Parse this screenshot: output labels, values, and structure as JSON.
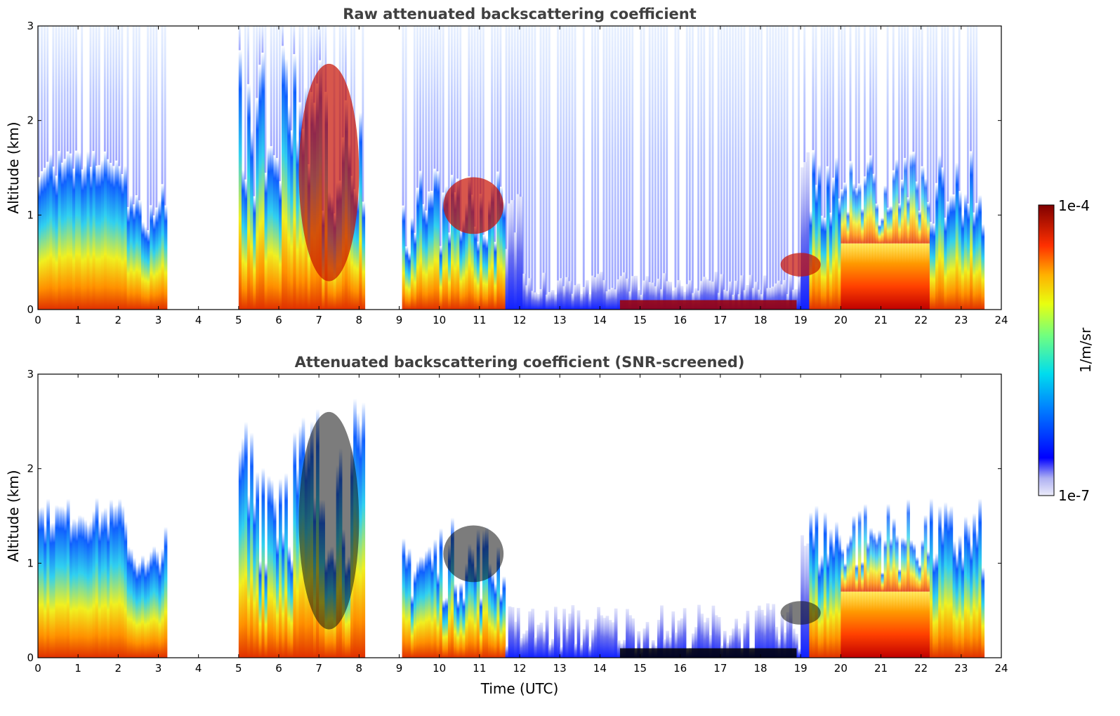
{
  "chart_data": [
    {
      "type": "heatmap",
      "title": "Raw attenuated backscattering coefficient",
      "xlabel": "",
      "ylabel": "Altitude (km)",
      "xlim": [
        0,
        24
      ],
      "ylim": [
        0,
        3
      ],
      "x_ticks": [
        "0",
        "1",
        "2",
        "3",
        "4",
        "5",
        "6",
        "7",
        "8",
        "9",
        "10",
        "11",
        "12",
        "13",
        "14",
        "15",
        "16",
        "17",
        "18",
        "19",
        "20",
        "21",
        "22",
        "23",
        "24"
      ],
      "y_ticks": [
        "0",
        "1",
        "2",
        "3"
      ],
      "data_gaps_utc": [
        [
          3.2,
          5.0
        ],
        [
          8.1,
          9.0
        ]
      ],
      "features": [
        {
          "kind": "aerosol_layer",
          "x": [
            0,
            3.2
          ],
          "y_top": 1.5
        },
        {
          "kind": "cloud",
          "x": [
            6.5,
            8.0
          ],
          "y": [
            0.3,
            2.6
          ]
        },
        {
          "kind": "cloud",
          "x": [
            10.1,
            11.6
          ],
          "y": [
            0.8,
            1.4
          ]
        },
        {
          "kind": "fog_layer",
          "x": [
            14.5,
            18.9
          ],
          "y": [
            0,
            0.1
          ]
        },
        {
          "kind": "cloud",
          "x": [
            18.5,
            19.5
          ],
          "y": [
            0.35,
            0.6
          ]
        },
        {
          "kind": "aerosol_layer",
          "x": [
            20.0,
            23.5
          ],
          "y_top": 1.4
        }
      ]
    },
    {
      "type": "heatmap",
      "title": "Attenuated backscattering coefficient (SNR-screened)",
      "xlabel": "Time (UTC)",
      "ylabel": "Altitude (km)",
      "xlim": [
        0,
        24
      ],
      "ylim": [
        0,
        3
      ],
      "x_ticks": [
        "0",
        "1",
        "2",
        "3",
        "4",
        "5",
        "6",
        "7",
        "8",
        "9",
        "10",
        "11",
        "12",
        "13",
        "14",
        "15",
        "16",
        "17",
        "18",
        "19",
        "20",
        "21",
        "22",
        "23",
        "24"
      ],
      "y_ticks": [
        "0",
        "1",
        "2",
        "3"
      ]
    }
  ],
  "colorbar": {
    "max_label": "1e-4",
    "min_label": "1e-7",
    "unit_label": "1/m/sr",
    "scale": "log"
  }
}
